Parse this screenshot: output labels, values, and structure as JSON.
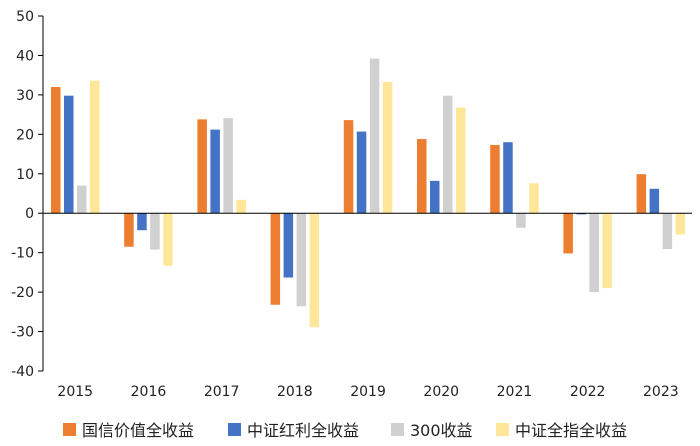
{
  "chart_data": {
    "type": "bar",
    "categories": [
      "2015",
      "2016",
      "2017",
      "2018",
      "2019",
      "2020",
      "2021",
      "2022",
      "2023"
    ],
    "series": [
      {
        "name": "国信价值全收益",
        "color": "#ED7D31",
        "values": [
          32,
          -8.5,
          23.8,
          -23.2,
          23.6,
          18.8,
          17.3,
          -10.2,
          9.9
        ]
      },
      {
        "name": "中证红利全收益",
        "color": "#4472C4",
        "values": [
          29.8,
          -4.3,
          21.2,
          -16.3,
          20.7,
          8.2,
          18.0,
          -0.3,
          6.2
        ]
      },
      {
        "name": "300收益",
        "color": "#D0D0D0",
        "values": [
          7.0,
          -9.2,
          24.1,
          -23.6,
          39.2,
          29.8,
          -3.7,
          -20.0,
          -9.1
        ]
      },
      {
        "name": "中证全指全收益",
        "color": "#FFE699",
        "values": [
          33.6,
          -13.3,
          3.4,
          -28.9,
          33.3,
          26.8,
          7.6,
          -19.0,
          -5.4
        ]
      }
    ],
    "y_ticks": [
      "50",
      "40",
      "30",
      "20",
      "10",
      "0",
      "-10",
      "-20",
      "-30",
      "-40"
    ],
    "ylim": [
      -40,
      50
    ],
    "legend_position": "bottom",
    "grid": false
  }
}
